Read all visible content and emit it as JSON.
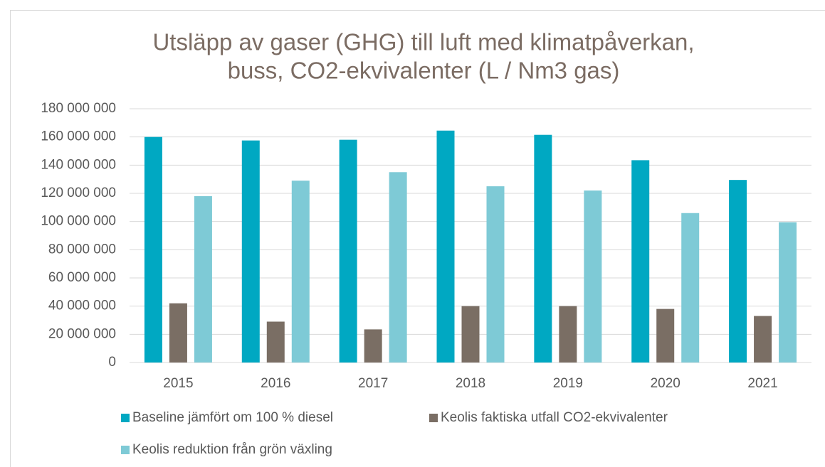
{
  "chart_data": {
    "type": "bar",
    "title": [
      "Utsläpp av gaser (GHG) till luft med klimatpåverkan,",
      "buss, CO2-ekvivalenter (L / Nm3 gas)"
    ],
    "categories": [
      "2015",
      "2016",
      "2017",
      "2018",
      "2019",
      "2020",
      "2021"
    ],
    "series": [
      {
        "name": "Baseline jämfört om 100 % diesel",
        "color": "#00a8c2",
        "values": [
          160000000,
          157500000,
          158000000,
          164500000,
          161500000,
          143500000,
          129500000
        ]
      },
      {
        "name": "Keolis faktiska utfall CO2-ekvivalenter",
        "color": "#7a6e64",
        "values": [
          42000000,
          29000000,
          23500000,
          40000000,
          40000000,
          38000000,
          33000000
        ]
      },
      {
        "name": "Keolis reduktion från grön växling",
        "color": "#7ecad6",
        "values": [
          118000000,
          129000000,
          135000000,
          125000000,
          122000000,
          106000000,
          99500000
        ]
      }
    ],
    "ylim": [
      0,
      180000000
    ],
    "yticks": [
      0,
      {
        "value": 20000000,
        "label": "20 000 000"
      },
      {
        "value": 40000000,
        "label": "40 000 000"
      },
      {
        "value": 60000000,
        "label": "60 000 000"
      },
      {
        "value": 80000000,
        "label": "80 000 000"
      },
      {
        "value": 100000000,
        "label": "100 000 000"
      },
      {
        "value": 120000000,
        "label": "120 000 000"
      },
      {
        "value": 140000000,
        "label": "140 000 000"
      },
      {
        "value": 160000000,
        "label": "160 000 000"
      },
      {
        "value": 180000000,
        "label": "180 000 000"
      }
    ],
    "grid": true,
    "legend": "bottom"
  }
}
